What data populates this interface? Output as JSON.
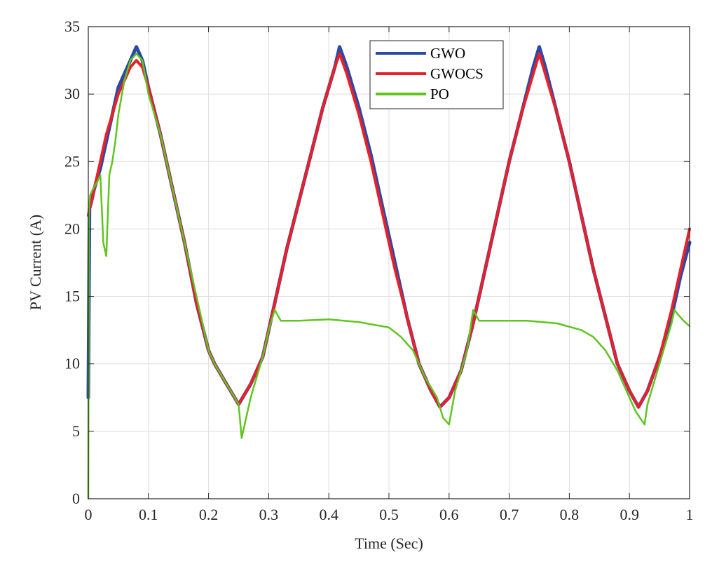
{
  "chart_data": {
    "type": "line",
    "title": "",
    "xlabel": "Time (Sec)",
    "ylabel": "PV Current (A)",
    "xlim": [
      0,
      1
    ],
    "ylim": [
      0,
      35
    ],
    "xticks": [
      0,
      0.1,
      0.2,
      0.3,
      0.4,
      0.5,
      0.6,
      0.7,
      0.8,
      0.9,
      1
    ],
    "xtick_labels": [
      "0",
      "0.1",
      "0.2",
      "0.3",
      "0.4",
      "0.5",
      "0.6",
      "0.7",
      "0.8",
      "0.9",
      "1"
    ],
    "yticks": [
      0,
      5,
      10,
      15,
      20,
      25,
      30,
      35
    ],
    "ytick_labels": [
      "0",
      "5",
      "10",
      "15",
      "20",
      "25",
      "30",
      "35"
    ],
    "grid": true,
    "legend_position": "top-right",
    "series": [
      {
        "name": "GWO",
        "color": "#2b4aa8",
        "x": [
          0,
          0.002,
          0.005,
          0.01,
          0.02,
          0.03,
          0.04,
          0.05,
          0.06,
          0.07,
          0.08,
          0.09,
          0.1,
          0.12,
          0.14,
          0.16,
          0.18,
          0.2,
          0.21,
          0.23,
          0.25,
          0.27,
          0.29,
          0.31,
          0.33,
          0.35,
          0.37,
          0.39,
          0.41,
          0.418,
          0.43,
          0.45,
          0.47,
          0.49,
          0.51,
          0.53,
          0.55,
          0.57,
          0.585,
          0.6,
          0.62,
          0.64,
          0.66,
          0.68,
          0.7,
          0.72,
          0.74,
          0.75,
          0.76,
          0.78,
          0.8,
          0.82,
          0.84,
          0.86,
          0.88,
          0.9,
          0.915,
          0.93,
          0.95,
          0.97,
          0.985,
          1.0
        ],
        "values": [
          7.5,
          21.5,
          22.0,
          23.0,
          24.5,
          26.5,
          28.5,
          30.5,
          31.5,
          32.5,
          33.5,
          32.5,
          30.5,
          27.0,
          23.0,
          19.0,
          14.5,
          11.0,
          10.0,
          8.5,
          7.0,
          8.5,
          10.5,
          14.5,
          18.5,
          22.0,
          25.5,
          29.0,
          32.0,
          33.5,
          32.0,
          29.0,
          25.5,
          21.5,
          17.5,
          13.5,
          10.0,
          8.0,
          6.8,
          7.5,
          9.5,
          13.0,
          17.0,
          21.0,
          25.0,
          28.5,
          32.0,
          33.5,
          32.0,
          28.5,
          25.0,
          21.0,
          17.0,
          13.5,
          10.0,
          8.0,
          6.8,
          8.0,
          10.5,
          13.5,
          16.5,
          19.0
        ]
      },
      {
        "name": "GWOCS",
        "color": "#e8202a",
        "x": [
          0,
          0.002,
          0.005,
          0.01,
          0.02,
          0.03,
          0.04,
          0.05,
          0.06,
          0.07,
          0.08,
          0.09,
          0.1,
          0.12,
          0.14,
          0.16,
          0.18,
          0.2,
          0.21,
          0.23,
          0.25,
          0.27,
          0.29,
          0.31,
          0.33,
          0.35,
          0.37,
          0.39,
          0.41,
          0.418,
          0.43,
          0.45,
          0.47,
          0.49,
          0.51,
          0.53,
          0.55,
          0.57,
          0.585,
          0.6,
          0.62,
          0.64,
          0.66,
          0.68,
          0.7,
          0.72,
          0.74,
          0.75,
          0.76,
          0.78,
          0.8,
          0.82,
          0.84,
          0.86,
          0.88,
          0.9,
          0.915,
          0.93,
          0.95,
          0.97,
          0.985,
          1.0
        ],
        "values": [
          21.0,
          21.5,
          22.0,
          23.0,
          25.0,
          27.0,
          28.5,
          30.0,
          31.0,
          32.0,
          32.5,
          32.0,
          30.5,
          27.0,
          23.0,
          19.0,
          14.5,
          11.0,
          10.0,
          8.5,
          7.0,
          8.5,
          10.5,
          14.5,
          18.5,
          22.0,
          25.5,
          29.0,
          32.0,
          33.0,
          31.5,
          28.5,
          25.0,
          21.0,
          17.0,
          13.5,
          10.0,
          8.0,
          6.8,
          7.5,
          9.5,
          13.0,
          17.0,
          21.0,
          25.0,
          28.5,
          31.5,
          33.0,
          31.5,
          28.5,
          25.0,
          21.0,
          17.0,
          13.5,
          10.0,
          8.0,
          6.8,
          8.0,
          10.5,
          14.0,
          17.0,
          20.0
        ]
      },
      {
        "name": "PO",
        "color": "#5fc520",
        "x": [
          0,
          0.001,
          0.003,
          0.008,
          0.015,
          0.02,
          0.025,
          0.03,
          0.035,
          0.04,
          0.045,
          0.05,
          0.06,
          0.07,
          0.08,
          0.09,
          0.1,
          0.12,
          0.14,
          0.16,
          0.18,
          0.2,
          0.21,
          0.23,
          0.25,
          0.255,
          0.26,
          0.27,
          0.28,
          0.29,
          0.3,
          0.31,
          0.32,
          0.35,
          0.4,
          0.45,
          0.5,
          0.52,
          0.54,
          0.56,
          0.58,
          0.59,
          0.6,
          0.61,
          0.62,
          0.63,
          0.64,
          0.65,
          0.68,
          0.73,
          0.78,
          0.82,
          0.84,
          0.86,
          0.88,
          0.9,
          0.91,
          0.925,
          0.93,
          0.94,
          0.95,
          0.96,
          0.97,
          0.975,
          0.98,
          0.99,
          1.0
        ],
        "values": [
          0.0,
          21.5,
          22.5,
          23.0,
          23.5,
          24.0,
          19.0,
          18.0,
          24.0,
          25.0,
          26.5,
          28.5,
          31.0,
          32.5,
          33.0,
          32.5,
          30.0,
          27.0,
          23.0,
          19.0,
          15.0,
          11.0,
          10.0,
          8.5,
          7.0,
          4.5,
          5.5,
          7.5,
          9.0,
          10.5,
          12.5,
          14.0,
          13.2,
          13.2,
          13.3,
          13.1,
          12.7,
          12.0,
          11.0,
          9.0,
          7.5,
          6.0,
          5.5,
          8.0,
          9.5,
          11.0,
          14.0,
          13.2,
          13.2,
          13.2,
          13.0,
          12.5,
          12.0,
          11.0,
          9.5,
          7.5,
          6.5,
          5.5,
          7.0,
          8.5,
          10.0,
          11.5,
          13.0,
          14.0,
          13.7,
          13.2,
          12.8
        ]
      }
    ]
  }
}
